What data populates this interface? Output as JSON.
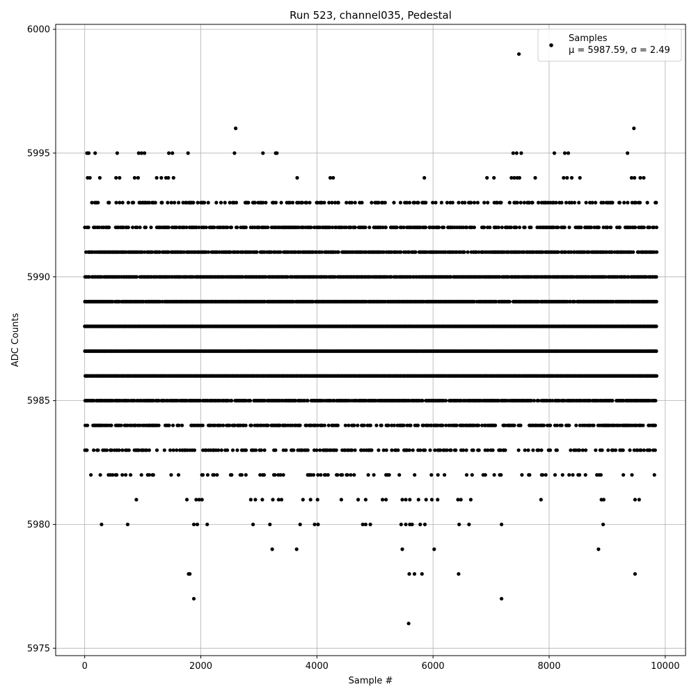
{
  "chart_data": {
    "type": "scatter",
    "title": "Run 523, channel035, Pedestal",
    "xlabel": "Sample #",
    "ylabel": "ADC Counts",
    "xlim": [
      -500,
      10350
    ],
    "ylim": [
      5974.7,
      6000.2
    ],
    "xticks": [
      0,
      2000,
      4000,
      6000,
      8000,
      10000
    ],
    "yticks": [
      5975,
      5980,
      5985,
      5990,
      5995,
      6000
    ],
    "grid": true,
    "legend": {
      "placement": "top-right",
      "series_label": "Samples",
      "stats_label": "μ = 5987.59, σ = 2.49"
    },
    "marker_color": "#000000",
    "series": [
      {
        "name": "Samples",
        "sample_count": 10000,
        "mean": 5987.59,
        "sigma": 2.49,
        "level_density": [
          [
            5986,
            10000,
            1.0
          ],
          [
            5987,
            10000,
            1.0
          ],
          [
            5988,
            10000,
            1.0
          ],
          [
            5989,
            10000,
            0.95
          ],
          [
            5990,
            10000,
            0.9
          ],
          [
            5985,
            10000,
            0.85
          ],
          [
            5991,
            10000,
            0.8
          ],
          [
            5992,
            10000,
            0.6
          ],
          [
            5984,
            10000,
            0.55
          ],
          [
            5983,
            10000,
            0.4
          ],
          [
            5993,
            10000,
            0.38
          ],
          [
            5982,
            10000,
            0.16
          ]
        ],
        "outliers": [
          [
            7480,
            5999
          ],
          [
            2600,
            5996
          ],
          [
            9460,
            5996
          ],
          [
            40,
            5995
          ],
          [
            70,
            5995
          ],
          [
            180,
            5995
          ],
          [
            560,
            5995
          ],
          [
            930,
            5995
          ],
          [
            980,
            5995
          ],
          [
            1030,
            5995
          ],
          [
            1450,
            5995
          ],
          [
            1510,
            5995
          ],
          [
            1780,
            5995
          ],
          [
            2580,
            5995
          ],
          [
            3070,
            5995
          ],
          [
            3290,
            5995
          ],
          [
            3310,
            5995
          ],
          [
            7380,
            5995
          ],
          [
            7440,
            5995
          ],
          [
            7520,
            5995
          ],
          [
            8090,
            5995
          ],
          [
            8270,
            5995
          ],
          [
            8330,
            5995
          ],
          [
            9350,
            5995
          ],
          [
            50,
            5994
          ],
          [
            90,
            5994
          ],
          [
            260,
            5994
          ],
          [
            540,
            5994
          ],
          [
            600,
            5994
          ],
          [
            860,
            5994
          ],
          [
            920,
            5994
          ],
          [
            1240,
            5994
          ],
          [
            1320,
            5994
          ],
          [
            1400,
            5994
          ],
          [
            1440,
            5994
          ],
          [
            1530,
            5994
          ],
          [
            3660,
            5994
          ],
          [
            4230,
            5994
          ],
          [
            4280,
            5994
          ],
          [
            5850,
            5994
          ],
          [
            6930,
            5994
          ],
          [
            7050,
            5994
          ],
          [
            7350,
            5994
          ],
          [
            7400,
            5994
          ],
          [
            7450,
            5994
          ],
          [
            7490,
            5994
          ],
          [
            7760,
            5994
          ],
          [
            8250,
            5994
          ],
          [
            8310,
            5994
          ],
          [
            8390,
            5994
          ],
          [
            8530,
            5994
          ],
          [
            9420,
            5994
          ],
          [
            9470,
            5994
          ],
          [
            9570,
            5994
          ],
          [
            9630,
            5994
          ],
          [
            890,
            5981
          ],
          [
            1760,
            5981
          ],
          [
            1920,
            5981
          ],
          [
            1970,
            5981
          ],
          [
            2020,
            5981
          ],
          [
            2860,
            5981
          ],
          [
            2940,
            5981
          ],
          [
            3060,
            5981
          ],
          [
            3240,
            5981
          ],
          [
            3340,
            5981
          ],
          [
            3390,
            5981
          ],
          [
            3760,
            5981
          ],
          [
            3890,
            5981
          ],
          [
            4010,
            5981
          ],
          [
            4420,
            5981
          ],
          [
            4710,
            5981
          ],
          [
            4840,
            5981
          ],
          [
            5130,
            5981
          ],
          [
            5190,
            5981
          ],
          [
            5470,
            5981
          ],
          [
            5530,
            5981
          ],
          [
            5600,
            5981
          ],
          [
            5750,
            5981
          ],
          [
            5880,
            5981
          ],
          [
            5980,
            5981
          ],
          [
            6080,
            5981
          ],
          [
            6430,
            5981
          ],
          [
            6480,
            5981
          ],
          [
            6650,
            5981
          ],
          [
            7860,
            5981
          ],
          [
            8900,
            5981
          ],
          [
            8940,
            5981
          ],
          [
            9480,
            5981
          ],
          [
            9550,
            5981
          ],
          [
            290,
            5980
          ],
          [
            740,
            5980
          ],
          [
            1880,
            5980
          ],
          [
            1940,
            5980
          ],
          [
            2110,
            5980
          ],
          [
            2900,
            5980
          ],
          [
            3190,
            5980
          ],
          [
            3710,
            5980
          ],
          [
            3960,
            5980
          ],
          [
            4020,
            5980
          ],
          [
            4790,
            5980
          ],
          [
            4840,
            5980
          ],
          [
            4920,
            5980
          ],
          [
            5450,
            5980
          ],
          [
            5530,
            5980
          ],
          [
            5600,
            5980
          ],
          [
            5640,
            5980
          ],
          [
            5780,
            5980
          ],
          [
            5860,
            5980
          ],
          [
            6450,
            5980
          ],
          [
            6620,
            5980
          ],
          [
            7180,
            5980
          ],
          [
            8930,
            5980
          ],
          [
            3230,
            5979
          ],
          [
            3650,
            5979
          ],
          [
            5470,
            5979
          ],
          [
            6020,
            5979
          ],
          [
            8850,
            5979
          ],
          [
            1790,
            5978
          ],
          [
            1810,
            5978
          ],
          [
            5590,
            5978
          ],
          [
            5680,
            5978
          ],
          [
            5810,
            5978
          ],
          [
            6440,
            5978
          ],
          [
            9480,
            5978
          ],
          [
            1880,
            5977
          ],
          [
            7180,
            5977
          ],
          [
            5580,
            5976
          ]
        ]
      }
    ]
  }
}
